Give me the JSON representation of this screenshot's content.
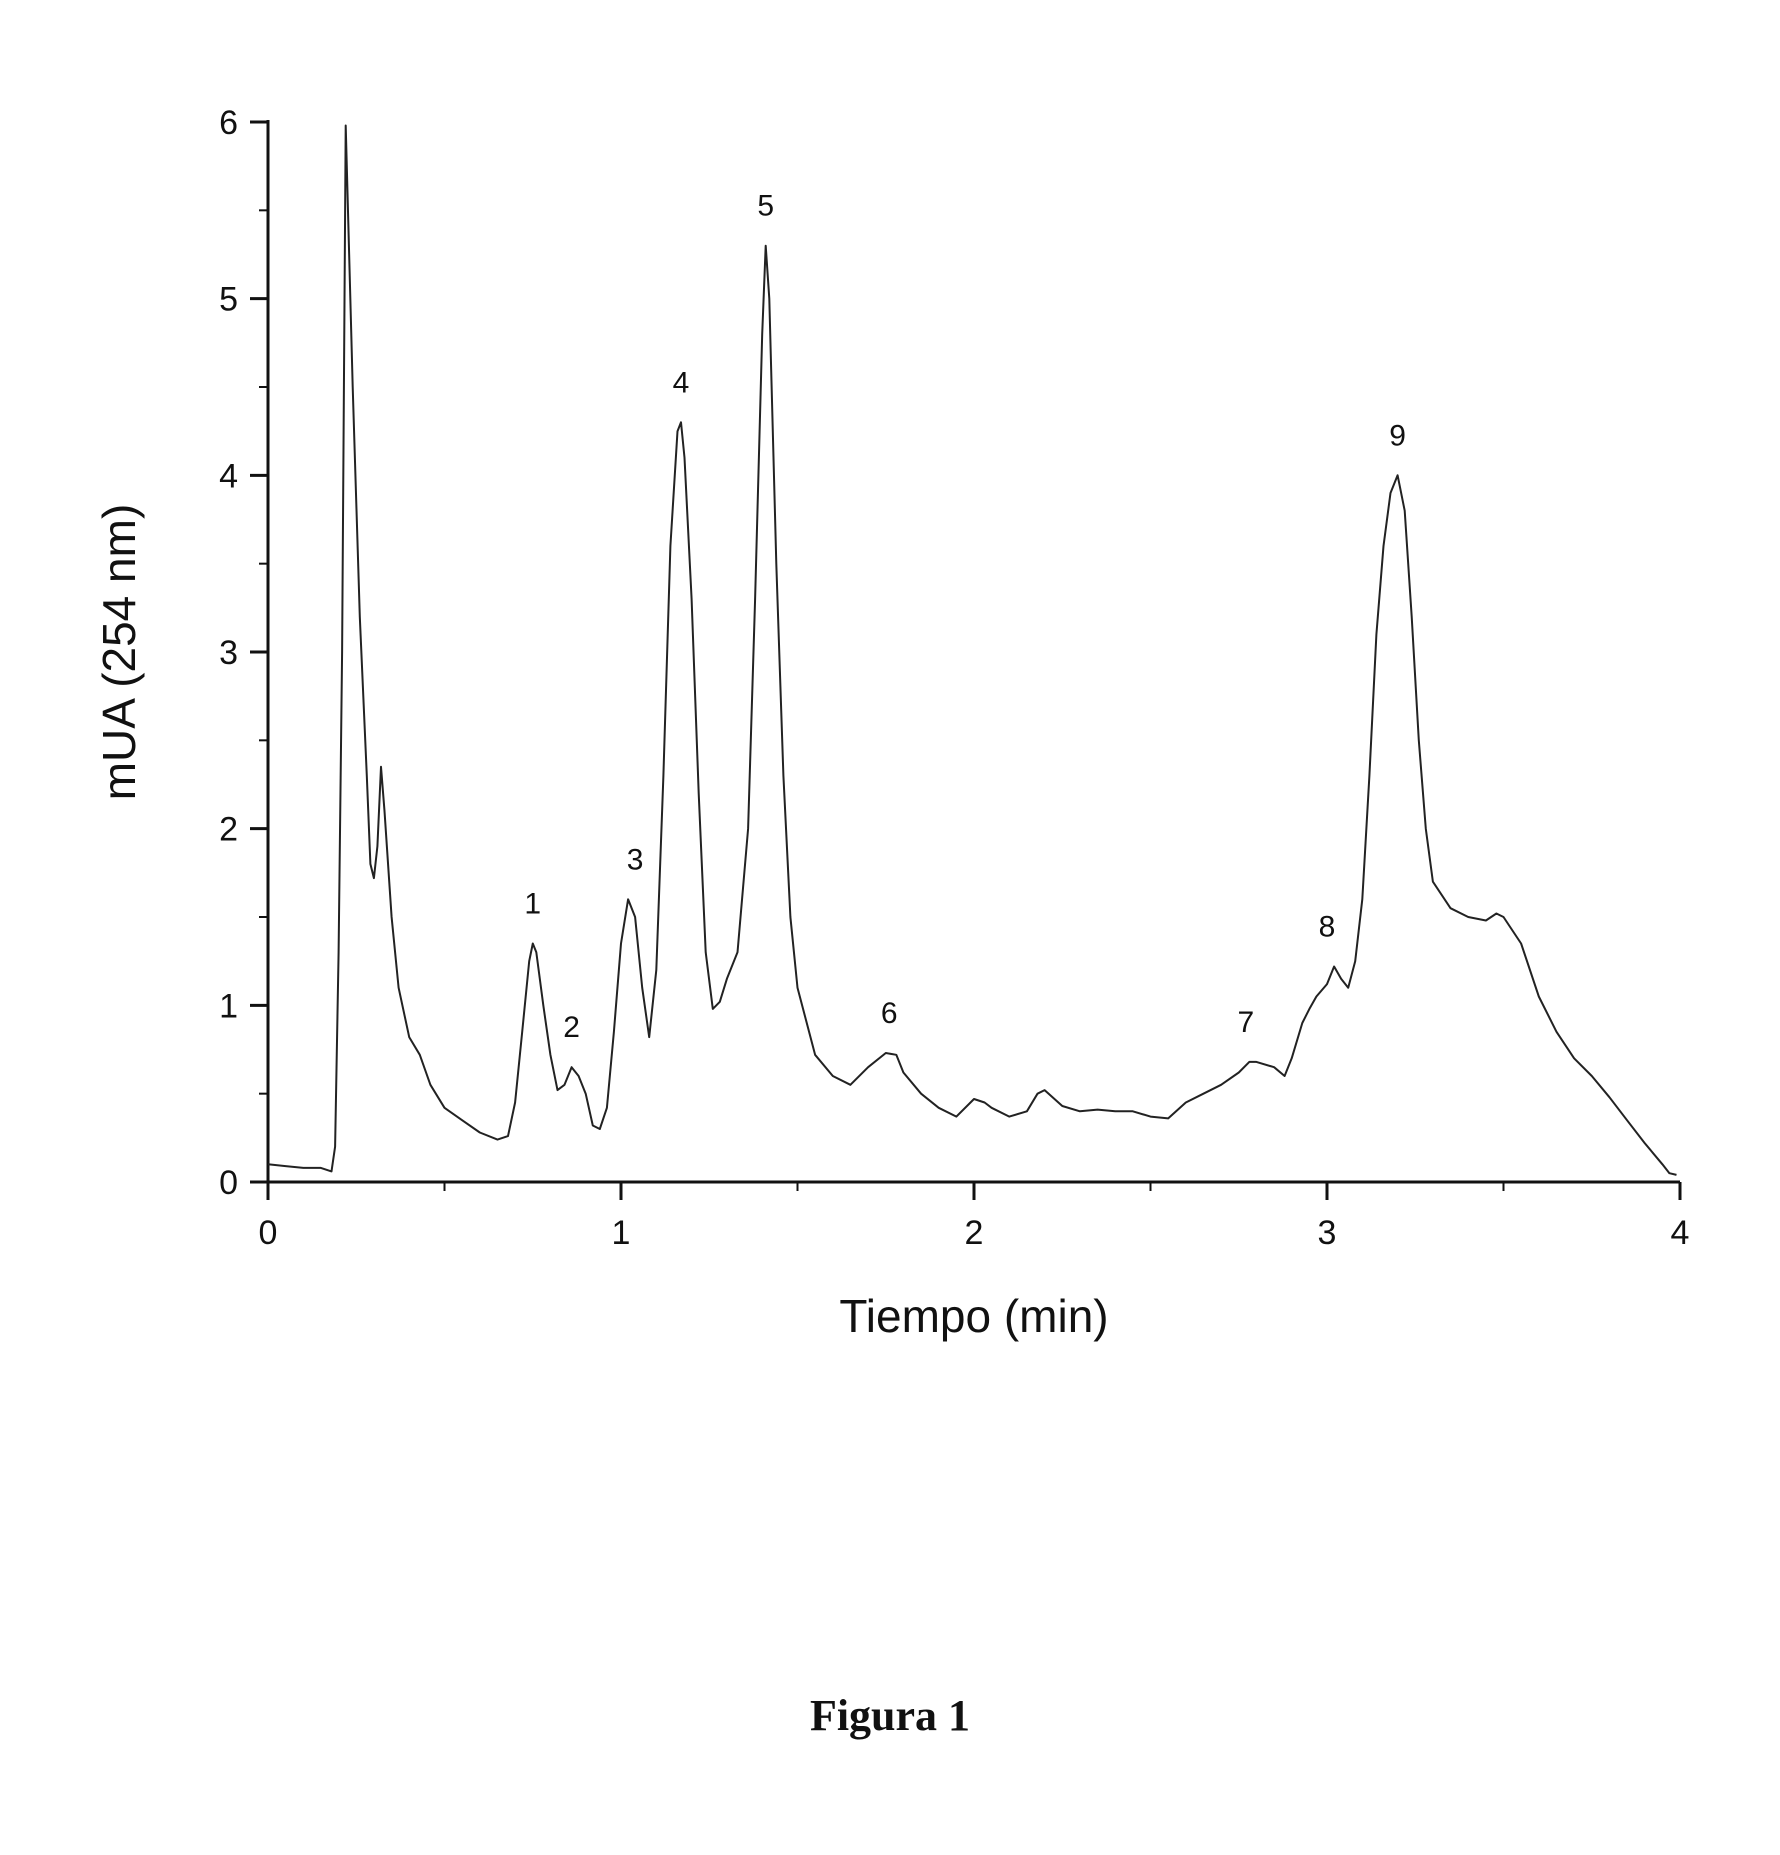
{
  "caption": "Figura 1",
  "chart_data": {
    "type": "line",
    "title": "",
    "xlabel": "Tiempo (min)",
    "ylabel": "mUA (254 nm)",
    "xlim": [
      0,
      4
    ],
    "ylim": [
      0,
      6
    ],
    "xticks": [
      0,
      1,
      2,
      3,
      4
    ],
    "yticks": [
      0,
      1,
      2,
      3,
      4,
      5,
      6
    ],
    "grid": false,
    "legend": "none",
    "line_color": "#222222",
    "series": [
      {
        "x": [
          0.0,
          0.05,
          0.1,
          0.15,
          0.18,
          0.19,
          0.2,
          0.21,
          0.22,
          0.24,
          0.26,
          0.28,
          0.29,
          0.3,
          0.31,
          0.32,
          0.33,
          0.35,
          0.37,
          0.4,
          0.43,
          0.46,
          0.5,
          0.55,
          0.6,
          0.65,
          0.68,
          0.7,
          0.72,
          0.74,
          0.75,
          0.76,
          0.78,
          0.8,
          0.82,
          0.84,
          0.86,
          0.88,
          0.9,
          0.92,
          0.94,
          0.96,
          0.98,
          1.0,
          1.02,
          1.04,
          1.06,
          1.08,
          1.1,
          1.12,
          1.14,
          1.16,
          1.17,
          1.18,
          1.2,
          1.22,
          1.24,
          1.26,
          1.28,
          1.3,
          1.33,
          1.36,
          1.38,
          1.4,
          1.41,
          1.42,
          1.44,
          1.46,
          1.48,
          1.5,
          1.55,
          1.6,
          1.65,
          1.7,
          1.75,
          1.78,
          1.8,
          1.85,
          1.9,
          1.95,
          2.0,
          2.03,
          2.05,
          2.1,
          2.15,
          2.18,
          2.2,
          2.25,
          2.3,
          2.35,
          2.4,
          2.45,
          2.5,
          2.55,
          2.6,
          2.65,
          2.7,
          2.75,
          2.78,
          2.8,
          2.85,
          2.88,
          2.9,
          2.93,
          2.95,
          2.97,
          3.0,
          3.02,
          3.04,
          3.06,
          3.08,
          3.1,
          3.12,
          3.14,
          3.16,
          3.18,
          3.2,
          3.22,
          3.24,
          3.26,
          3.28,
          3.3,
          3.35,
          3.4,
          3.45,
          3.48,
          3.5,
          3.55,
          3.6,
          3.65,
          3.7,
          3.75,
          3.8,
          3.85,
          3.9,
          3.95,
          3.97,
          3.99
        ],
        "y": [
          0.1,
          0.09,
          0.08,
          0.08,
          0.06,
          0.2,
          1.3,
          3.0,
          5.98,
          4.5,
          3.2,
          2.3,
          1.8,
          1.72,
          1.9,
          2.35,
          2.1,
          1.5,
          1.1,
          0.82,
          0.72,
          0.55,
          0.42,
          0.35,
          0.28,
          0.24,
          0.26,
          0.45,
          0.85,
          1.25,
          1.35,
          1.3,
          1.0,
          0.72,
          0.52,
          0.55,
          0.65,
          0.6,
          0.5,
          0.32,
          0.3,
          0.42,
          0.85,
          1.35,
          1.6,
          1.5,
          1.1,
          0.82,
          1.2,
          2.3,
          3.6,
          4.25,
          4.3,
          4.1,
          3.3,
          2.2,
          1.3,
          0.98,
          1.02,
          1.15,
          1.3,
          2.0,
          3.3,
          4.8,
          5.3,
          5.0,
          3.5,
          2.3,
          1.5,
          1.1,
          0.72,
          0.6,
          0.55,
          0.65,
          0.73,
          0.72,
          0.62,
          0.5,
          0.42,
          0.37,
          0.47,
          0.45,
          0.42,
          0.37,
          0.4,
          0.5,
          0.52,
          0.43,
          0.4,
          0.41,
          0.4,
          0.4,
          0.37,
          0.36,
          0.45,
          0.5,
          0.55,
          0.62,
          0.68,
          0.68,
          0.65,
          0.6,
          0.7,
          0.9,
          0.98,
          1.05,
          1.12,
          1.22,
          1.15,
          1.1,
          1.25,
          1.6,
          2.3,
          3.1,
          3.6,
          3.9,
          4.0,
          3.8,
          3.2,
          2.5,
          2.0,
          1.7,
          1.55,
          1.5,
          1.48,
          1.52,
          1.5,
          1.35,
          1.05,
          0.85,
          0.7,
          0.6,
          0.48,
          0.35,
          0.22,
          0.1,
          0.05,
          0.04
        ]
      }
    ],
    "annotations": [
      {
        "text": "1",
        "x": 0.75,
        "y": 1.35
      },
      {
        "text": "2",
        "x": 0.86,
        "y": 0.65
      },
      {
        "text": "3",
        "x": 1.04,
        "y": 1.6
      },
      {
        "text": "4",
        "x": 1.17,
        "y": 4.3
      },
      {
        "text": "5",
        "x": 1.41,
        "y": 5.3
      },
      {
        "text": "6",
        "x": 1.76,
        "y": 0.73
      },
      {
        "text": "7",
        "x": 2.77,
        "y": 0.68
      },
      {
        "text": "8",
        "x": 3.0,
        "y": 1.22
      },
      {
        "text": "9",
        "x": 3.2,
        "y": 4.0
      }
    ]
  }
}
